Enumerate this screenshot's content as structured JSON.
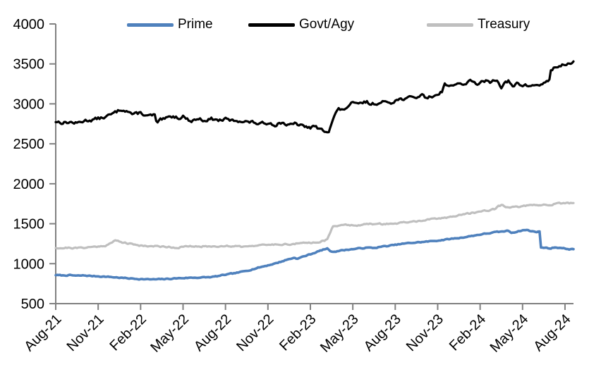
{
  "chart_data": {
    "type": "line",
    "title": "",
    "xlabel": "",
    "ylabel": "",
    "grid": "off",
    "legend_position": "top",
    "axis_color": "#808080",
    "ylim": [
      500,
      4000
    ],
    "y_ticks": [
      500,
      1000,
      1500,
      2000,
      2500,
      3000,
      3500,
      4000
    ],
    "x_domain": [
      0,
      36.6
    ],
    "x_unit": "months since Aug-21",
    "x_ticks": [
      0,
      3,
      6,
      9,
      12,
      15,
      18,
      21,
      24,
      27,
      30,
      33,
      36
    ],
    "x_tick_labels": [
      "Aug-21",
      "Nov-21",
      "Feb-22",
      "May-22",
      "Aug-22",
      "Nov-22",
      "Feb-23",
      "May-23",
      "Aug-23",
      "Nov-23",
      "Feb-24",
      "May-24",
      "Aug-24"
    ],
    "series": [
      {
        "name": "Prime",
        "color": "#4F81BD",
        "width": 3.6,
        "noise": 10,
        "seed": 7,
        "points": [
          [
            0,
            858
          ],
          [
            0.5,
            852
          ],
          [
            1,
            856
          ],
          [
            1.5,
            848
          ],
          [
            2,
            852
          ],
          [
            2.5,
            846
          ],
          [
            3,
            842
          ],
          [
            3.5,
            838
          ],
          [
            4,
            832
          ],
          [
            4.5,
            825
          ],
          [
            5,
            818
          ],
          [
            5.5,
            812
          ],
          [
            6,
            808
          ],
          [
            6.5,
            804
          ],
          [
            7,
            803
          ],
          [
            7.5,
            806
          ],
          [
            8,
            810
          ],
          [
            8.5,
            816
          ],
          [
            9,
            820
          ],
          [
            9.5,
            824
          ],
          [
            10,
            826
          ],
          [
            10.5,
            828
          ],
          [
            11,
            832
          ],
          [
            11.5,
            845
          ],
          [
            12,
            862
          ],
          [
            12.5,
            875
          ],
          [
            13,
            892
          ],
          [
            13.5,
            912
          ],
          [
            14,
            935
          ],
          [
            14.5,
            958
          ],
          [
            15,
            980
          ],
          [
            15.5,
            1002
          ],
          [
            16,
            1030
          ],
          [
            16.5,
            1058
          ],
          [
            16.9,
            1075
          ],
          [
            17.1,
            1062
          ],
          [
            17.5,
            1090
          ],
          [
            18,
            1118
          ],
          [
            18.5,
            1150
          ],
          [
            19,
            1180
          ],
          [
            19.2,
            1188
          ],
          [
            19.5,
            1148
          ],
          [
            19.8,
            1155
          ],
          [
            20,
            1162
          ],
          [
            20.5,
            1172
          ],
          [
            21,
            1182
          ],
          [
            21.5,
            1192
          ],
          [
            22,
            1200
          ],
          [
            22.5,
            1196
          ],
          [
            23,
            1212
          ],
          [
            23.5,
            1222
          ],
          [
            24,
            1235
          ],
          [
            24.5,
            1248
          ],
          [
            25,
            1258
          ],
          [
            25.5,
            1265
          ],
          [
            26,
            1272
          ],
          [
            26.5,
            1280
          ],
          [
            27,
            1290
          ],
          [
            27.5,
            1300
          ],
          [
            28,
            1312
          ],
          [
            28.5,
            1322
          ],
          [
            29,
            1335
          ],
          [
            29.5,
            1350
          ],
          [
            30,
            1365
          ],
          [
            30.5,
            1378
          ],
          [
            31,
            1392
          ],
          [
            31.5,
            1400
          ],
          [
            32,
            1412
          ],
          [
            32.2,
            1388
          ],
          [
            32.5,
            1398
          ],
          [
            33,
            1418
          ],
          [
            33.3,
            1422
          ],
          [
            33.6,
            1405
          ],
          [
            34,
            1400
          ],
          [
            34.22,
            1400
          ],
          [
            34.3,
            1205
          ],
          [
            34.6,
            1198
          ],
          [
            35,
            1192
          ],
          [
            35.3,
            1205
          ],
          [
            35.6,
            1200
          ],
          [
            36,
            1188
          ],
          [
            36.3,
            1182
          ],
          [
            36.6,
            1180
          ]
        ]
      },
      {
        "name": "Govt/Agy",
        "color": "#000000",
        "width": 3.2,
        "noise": 34,
        "seed": 13,
        "points": [
          [
            0,
            2780
          ],
          [
            0.5,
            2765
          ],
          [
            1,
            2772
          ],
          [
            1.5,
            2756
          ],
          [
            2,
            2790
          ],
          [
            2.5,
            2800
          ],
          [
            3,
            2815
          ],
          [
            3.5,
            2835
          ],
          [
            4,
            2870
          ],
          [
            4.5,
            2920
          ],
          [
            4.8,
            2935
          ],
          [
            5.2,
            2900
          ],
          [
            5.5,
            2862
          ],
          [
            6,
            2890
          ],
          [
            6.5,
            2845
          ],
          [
            7,
            2860
          ],
          [
            7.15,
            2740
          ],
          [
            7.4,
            2792
          ],
          [
            7.8,
            2812
          ],
          [
            8.3,
            2845
          ],
          [
            8.7,
            2826
          ],
          [
            9,
            2850
          ],
          [
            9.3,
            2806
          ],
          [
            9.6,
            2786
          ],
          [
            10,
            2815
          ],
          [
            10.5,
            2796
          ],
          [
            11,
            2812
          ],
          [
            11.5,
            2792
          ],
          [
            12,
            2806
          ],
          [
            12.5,
            2786
          ],
          [
            13,
            2792
          ],
          [
            13.5,
            2776
          ],
          [
            14,
            2766
          ],
          [
            14.5,
            2746
          ],
          [
            15,
            2766
          ],
          [
            15.5,
            2742
          ],
          [
            16,
            2770
          ],
          [
            16.5,
            2726
          ],
          [
            17,
            2752
          ],
          [
            17.5,
            2716
          ],
          [
            18,
            2702
          ],
          [
            18.3,
            2722
          ],
          [
            18.6,
            2682
          ],
          [
            19,
            2660
          ],
          [
            19.3,
            2672
          ],
          [
            19.5,
            2762
          ],
          [
            19.8,
            2892
          ],
          [
            20,
            2930
          ],
          [
            20.3,
            2916
          ],
          [
            20.6,
            2962
          ],
          [
            21,
            3010
          ],
          [
            21.3,
            2986
          ],
          [
            21.7,
            3016
          ],
          [
            22,
            3022
          ],
          [
            22.3,
            2996
          ],
          [
            22.7,
            3012
          ],
          [
            23,
            3002
          ],
          [
            23.3,
            3032
          ],
          [
            23.7,
            3022
          ],
          [
            24,
            3046
          ],
          [
            24.5,
            3062
          ],
          [
            25,
            3072
          ],
          [
            25.5,
            3086
          ],
          [
            26,
            3112
          ],
          [
            26.2,
            3076
          ],
          [
            26.5,
            3086
          ],
          [
            27,
            3122
          ],
          [
            27.3,
            3162
          ],
          [
            27.5,
            3246
          ],
          [
            27.8,
            3232
          ],
          [
            28,
            3216
          ],
          [
            28.3,
            3266
          ],
          [
            28.6,
            3246
          ],
          [
            29,
            3256
          ],
          [
            29.3,
            3282
          ],
          [
            29.7,
            3252
          ],
          [
            30,
            3262
          ],
          [
            30.4,
            3282
          ],
          [
            30.7,
            3266
          ],
          [
            31,
            3302
          ],
          [
            31.2,
            3312
          ],
          [
            31.5,
            3216
          ],
          [
            31.8,
            3266
          ],
          [
            32,
            3282
          ],
          [
            32.3,
            3202
          ],
          [
            32.6,
            3256
          ],
          [
            33,
            3232
          ],
          [
            33.5,
            3226
          ],
          [
            34,
            3236
          ],
          [
            34.4,
            3246
          ],
          [
            34.7,
            3272
          ],
          [
            34.88,
            3282
          ],
          [
            35,
            3432
          ],
          [
            35.2,
            3446
          ],
          [
            35.5,
            3466
          ],
          [
            35.8,
            3482
          ],
          [
            36.1,
            3500
          ],
          [
            36.4,
            3516
          ],
          [
            36.6,
            3522
          ]
        ]
      },
      {
        "name": "Treasury",
        "color": "#BFBFBF",
        "width": 3.2,
        "noise": 16,
        "seed": 21,
        "points": [
          [
            0,
            1200
          ],
          [
            0.5,
            1196
          ],
          [
            1,
            1200
          ],
          [
            1.5,
            1195
          ],
          [
            2,
            1202
          ],
          [
            2.5,
            1208
          ],
          [
            3,
            1215
          ],
          [
            3.5,
            1228
          ],
          [
            4,
            1262
          ],
          [
            4.2,
            1292
          ],
          [
            4.5,
            1280
          ],
          [
            5,
            1256
          ],
          [
            5.5,
            1240
          ],
          [
            6,
            1228
          ],
          [
            6.5,
            1222
          ],
          [
            7,
            1218
          ],
          [
            7.5,
            1215
          ],
          [
            8,
            1212
          ],
          [
            8.5,
            1200
          ],
          [
            9,
            1210
          ],
          [
            9.5,
            1216
          ],
          [
            10,
            1212
          ],
          [
            10.5,
            1218
          ],
          [
            11,
            1215
          ],
          [
            11.5,
            1220
          ],
          [
            12,
            1222
          ],
          [
            12.5,
            1218
          ],
          [
            13,
            1226
          ],
          [
            13.2,
            1210
          ],
          [
            13.5,
            1222
          ],
          [
            14,
            1228
          ],
          [
            14.5,
            1226
          ],
          [
            15,
            1236
          ],
          [
            15.5,
            1240
          ],
          [
            16,
            1246
          ],
          [
            16.5,
            1242
          ],
          [
            17,
            1250
          ],
          [
            17.5,
            1256
          ],
          [
            18,
            1262
          ],
          [
            18.5,
            1272
          ],
          [
            19,
            1290
          ],
          [
            19.2,
            1302
          ],
          [
            19.4,
            1382
          ],
          [
            19.6,
            1466
          ],
          [
            19.8,
            1478
          ],
          [
            20,
            1482
          ],
          [
            20.3,
            1492
          ],
          [
            20.6,
            1480
          ],
          [
            21,
            1488
          ],
          [
            21.5,
            1482
          ],
          [
            22,
            1492
          ],
          [
            22.5,
            1498
          ],
          [
            23,
            1495
          ],
          [
            23.5,
            1500
          ],
          [
            24,
            1502
          ],
          [
            24.5,
            1512
          ],
          [
            25,
            1520
          ],
          [
            25.5,
            1530
          ],
          [
            26,
            1542
          ],
          [
            26.5,
            1552
          ],
          [
            27,
            1562
          ],
          [
            27.5,
            1576
          ],
          [
            28,
            1590
          ],
          [
            28.5,
            1606
          ],
          [
            29,
            1622
          ],
          [
            29.5,
            1638
          ],
          [
            30,
            1652
          ],
          [
            30.5,
            1668
          ],
          [
            31,
            1682
          ],
          [
            31.3,
            1722
          ],
          [
            31.6,
            1736
          ],
          [
            32,
            1698
          ],
          [
            32.3,
            1706
          ],
          [
            32.6,
            1712
          ],
          [
            33,
            1718
          ],
          [
            33.5,
            1724
          ],
          [
            34,
            1728
          ],
          [
            34.5,
            1736
          ],
          [
            35,
            1742
          ],
          [
            35.5,
            1748
          ],
          [
            36,
            1755
          ],
          [
            36.3,
            1758
          ],
          [
            36.6,
            1760
          ]
        ]
      }
    ]
  }
}
